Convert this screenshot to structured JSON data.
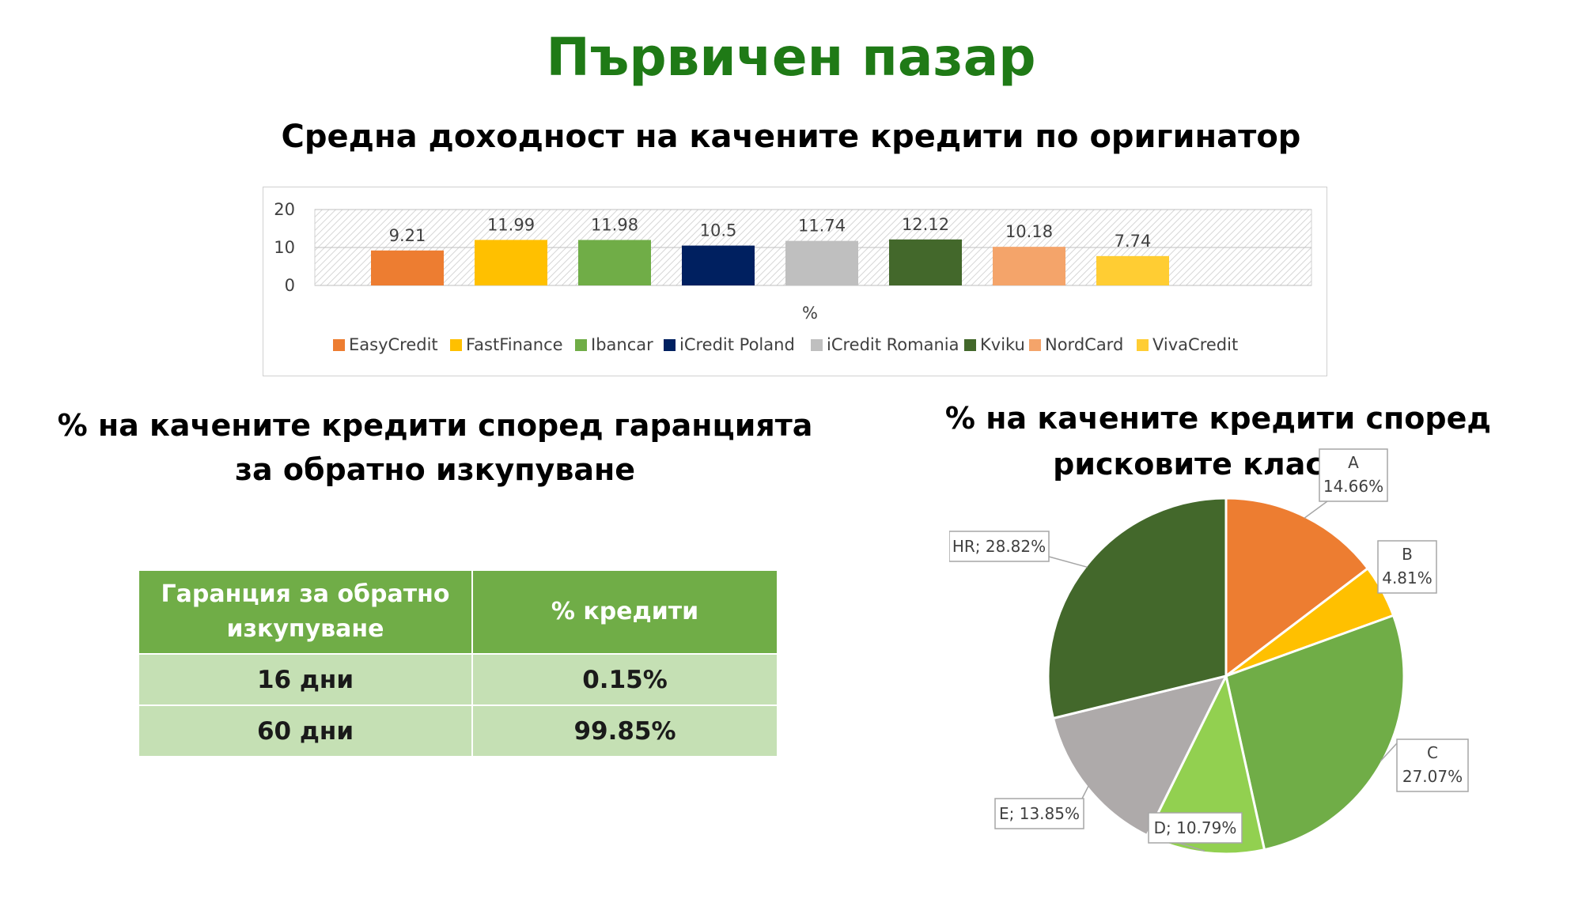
{
  "page_title": "Първичен пазар",
  "bar_chart_title": "Средна доходност на качените кредити по оригинатор",
  "table_title": "% на качените кредити според гаранцията за обратно изкупуване",
  "pie_chart_title": "% на качените кредити според рисковите класове",
  "table": {
    "headers": [
      "Гаранция за обратно изкупуване",
      "% кредити"
    ],
    "rows": [
      [
        "16 дни",
        "0.15%"
      ],
      [
        "60 дни",
        "99.85%"
      ]
    ]
  },
  "chart_data": [
    {
      "type": "bar",
      "xlabel": "%",
      "ylim": [
        0,
        20
      ],
      "yticks": [
        "0",
        "10",
        "20"
      ],
      "legend_position": "bottom",
      "series": [
        {
          "name": "EasyCredit",
          "value": 9.21,
          "label": "9.21",
          "color": "#ed7d31"
        },
        {
          "name": "FastFinance",
          "value": 11.99,
          "label": "11.99",
          "color": "#ffc000"
        },
        {
          "name": "Ibancar",
          "value": 11.98,
          "label": "11.98",
          "color": "#70ad47"
        },
        {
          "name": "iCredit Poland",
          "value": 10.5,
          "label": "10.5",
          "color": "#002060"
        },
        {
          "name": "iCredit Romania",
          "value": 11.74,
          "label": "11.74",
          "color": "#bfbfbf"
        },
        {
          "name": "Kviku",
          "value": 12.12,
          "label": "12.12",
          "color": "#43682b"
        },
        {
          "name": "NordCard",
          "value": 10.18,
          "label": "10.18",
          "color": "#f4a46a"
        },
        {
          "name": "VivaCredit",
          "value": 7.74,
          "label": "7.74",
          "color": "#ffcd33"
        }
      ]
    },
    {
      "type": "pie",
      "slices": [
        {
          "category": "A",
          "value": 14.66,
          "label": "14.66%",
          "color": "#ed7d31"
        },
        {
          "category": "B",
          "value": 4.81,
          "label": "4.81%",
          "color": "#ffc000"
        },
        {
          "category": "C",
          "value": 27.07,
          "label": "27.07%",
          "color": "#70ad47"
        },
        {
          "category": "D",
          "value": 10.79,
          "label": "D; 10.79%",
          "color": "#92d050"
        },
        {
          "category": "E",
          "value": 13.85,
          "label": "E; 13.85%",
          "color": "#aeaaaa"
        },
        {
          "category": "HR",
          "value": 28.82,
          "label": "HR; 28.82%",
          "color": "#43682b"
        }
      ]
    }
  ]
}
